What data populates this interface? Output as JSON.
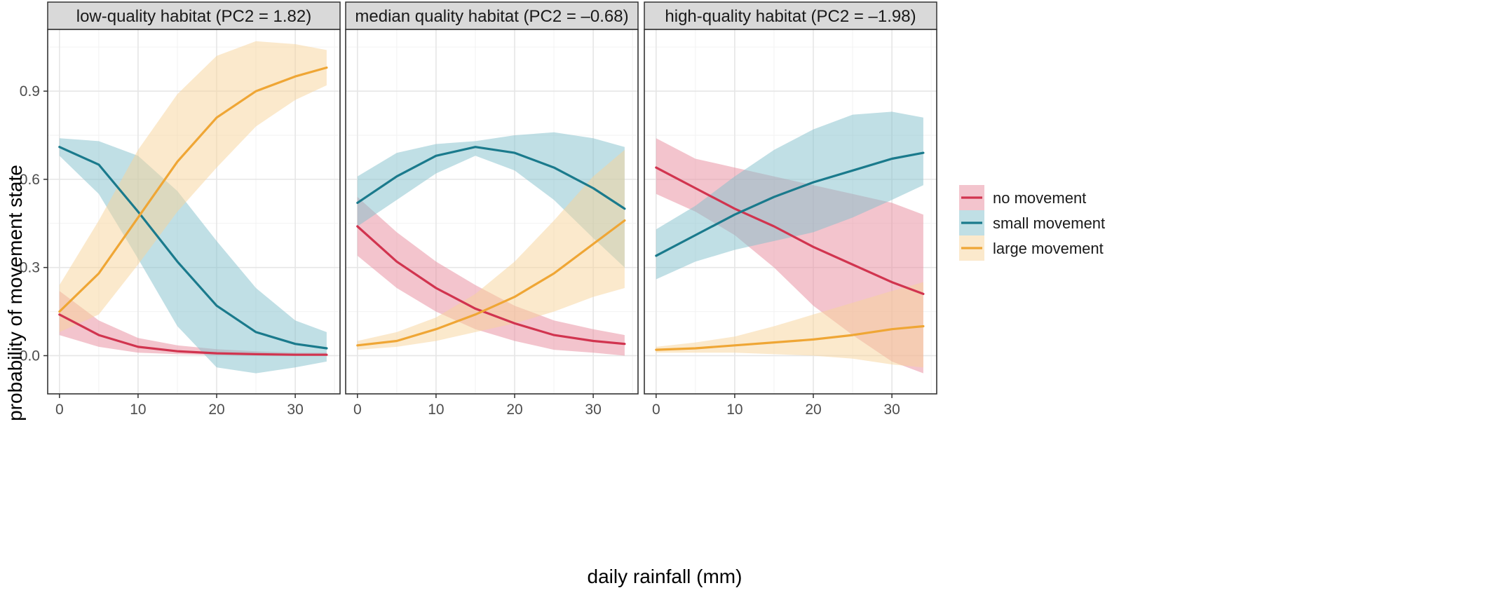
{
  "chart_data": {
    "type": "line",
    "xlabel": "daily rainfall (mm)",
    "ylabel": "probability of movement state",
    "xlim": [
      -1.5,
      35.7
    ],
    "ylim": [
      -0.13,
      1.11
    ],
    "x_ticks": [
      0,
      10,
      20,
      30
    ],
    "x_tick_labels": [
      "0",
      "10",
      "20",
      "30"
    ],
    "y_ticks": [
      0.0,
      0.3,
      0.6,
      0.9
    ],
    "y_tick_labels": [
      "0.0",
      "0.3",
      "0.6",
      "0.9"
    ],
    "grid": true,
    "legend_position": "right",
    "legend": [
      {
        "key": "no",
        "label": "no movement"
      },
      {
        "key": "small",
        "label": "small movement"
      },
      {
        "key": "large",
        "label": "large movement"
      }
    ],
    "colors": {
      "no": "#D1344F",
      "small": "#1A7A8C",
      "large": "#EFA635",
      "no_band": "#E88A9B",
      "small_band": "#82C0CC",
      "large_band": "#F8D49A"
    },
    "x": [
      0,
      5,
      10,
      15,
      20,
      25,
      30,
      34
    ],
    "panels": [
      {
        "title": "low-quality habitat (PC2 = 1.82)",
        "series": [
          {
            "key": "no",
            "mean": [
              0.14,
              0.07,
              0.03,
              0.015,
              0.008,
              0.005,
              0.003,
              0.003
            ],
            "lower": [
              0.07,
              0.03,
              0.01,
              0.005,
              0.002,
              0.001,
              0.0,
              0.0
            ],
            "upper": [
              0.22,
              0.12,
              0.06,
              0.035,
              0.022,
              0.015,
              0.01,
              0.01
            ]
          },
          {
            "key": "small",
            "mean": [
              0.71,
              0.65,
              0.49,
              0.32,
              0.17,
              0.08,
              0.04,
              0.025
            ],
            "lower": [
              0.68,
              0.55,
              0.33,
              0.1,
              -0.04,
              -0.06,
              -0.04,
              -0.02
            ],
            "upper": [
              0.74,
              0.73,
              0.68,
              0.56,
              0.39,
              0.23,
              0.12,
              0.08
            ]
          },
          {
            "key": "large",
            "mean": [
              0.15,
              0.28,
              0.47,
              0.66,
              0.81,
              0.9,
              0.95,
              0.98
            ],
            "lower": [
              0.08,
              0.14,
              0.31,
              0.49,
              0.64,
              0.78,
              0.87,
              0.92
            ],
            "upper": [
              0.24,
              0.46,
              0.7,
              0.89,
              1.02,
              1.07,
              1.06,
              1.04
            ]
          }
        ]
      },
      {
        "title": "median quality habitat (PC2 = –0.68)",
        "series": [
          {
            "key": "no",
            "mean": [
              0.44,
              0.32,
              0.23,
              0.16,
              0.11,
              0.07,
              0.05,
              0.04
            ],
            "lower": [
              0.34,
              0.23,
              0.15,
              0.09,
              0.05,
              0.02,
              0.01,
              0.0
            ],
            "upper": [
              0.54,
              0.42,
              0.32,
              0.24,
              0.17,
              0.12,
              0.09,
              0.07
            ]
          },
          {
            "key": "small",
            "mean": [
              0.52,
              0.61,
              0.68,
              0.71,
              0.69,
              0.64,
              0.57,
              0.5
            ],
            "lower": [
              0.44,
              0.53,
              0.62,
              0.68,
              0.63,
              0.53,
              0.4,
              0.3
            ],
            "upper": [
              0.61,
              0.69,
              0.72,
              0.73,
              0.75,
              0.76,
              0.74,
              0.71
            ]
          },
          {
            "key": "large",
            "mean": [
              0.035,
              0.05,
              0.09,
              0.14,
              0.2,
              0.28,
              0.38,
              0.46
            ],
            "lower": [
              0.02,
              0.03,
              0.05,
              0.08,
              0.11,
              0.15,
              0.2,
              0.23
            ],
            "upper": [
              0.05,
              0.08,
              0.13,
              0.21,
              0.32,
              0.46,
              0.61,
              0.7
            ]
          }
        ]
      },
      {
        "title": "high-quality habitat (PC2 = –1.98)",
        "series": [
          {
            "key": "no",
            "mean": [
              0.64,
              0.57,
              0.5,
              0.44,
              0.37,
              0.31,
              0.25,
              0.21
            ],
            "lower": [
              0.55,
              0.49,
              0.41,
              0.3,
              0.17,
              0.07,
              -0.02,
              -0.06
            ],
            "upper": [
              0.74,
              0.67,
              0.64,
              0.61,
              0.58,
              0.55,
              0.52,
              0.48
            ]
          },
          {
            "key": "small",
            "mean": [
              0.34,
              0.41,
              0.48,
              0.54,
              0.59,
              0.63,
              0.67,
              0.69
            ],
            "lower": [
              0.26,
              0.32,
              0.36,
              0.39,
              0.42,
              0.47,
              0.53,
              0.58
            ],
            "upper": [
              0.43,
              0.51,
              0.61,
              0.7,
              0.77,
              0.82,
              0.83,
              0.81
            ]
          },
          {
            "key": "large",
            "mean": [
              0.02,
              0.025,
              0.035,
              0.045,
              0.055,
              0.07,
              0.09,
              0.1
            ],
            "lower": [
              0.01,
              0.01,
              0.01,
              0.005,
              0.0,
              -0.01,
              -0.03,
              -0.04
            ],
            "upper": [
              0.03,
              0.045,
              0.065,
              0.1,
              0.14,
              0.18,
              0.22,
              0.25
            ]
          }
        ]
      }
    ]
  }
}
